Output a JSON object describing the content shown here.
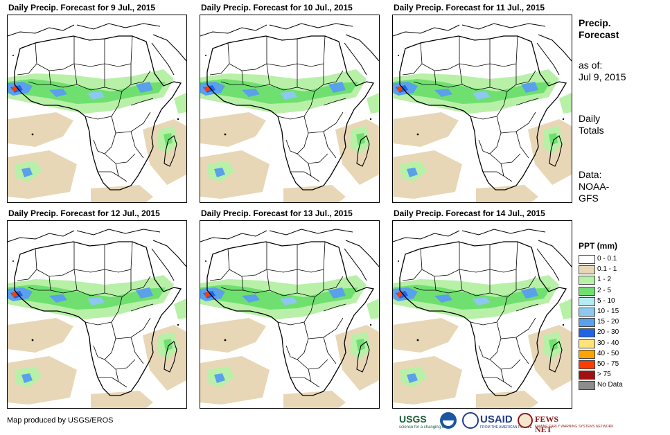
{
  "panels": [
    {
      "title": "Daily Precip. Forecast for 9 Jul., 2015"
    },
    {
      "title": "Daily Precip. Forecast for 10 Jul., 2015"
    },
    {
      "title": "Daily Precip. Forecast for 11 Jul., 2015"
    },
    {
      "title": "Daily Precip. Forecast for 12 Jul., 2015"
    },
    {
      "title": "Daily Precip. Forecast for 13 Jul., 2015"
    },
    {
      "title": "Daily Precip. Forecast for 14 Jul., 2015"
    }
  ],
  "sidebar": {
    "heading_line1": "Precip.",
    "heading_line2": "Forecast",
    "asof_label": "as of:",
    "asof_date": "Jul 9, 2015",
    "totals_line1": "Daily",
    "totals_line2": "Totals",
    "data_line1": "Data:",
    "data_line2": "NOAA-",
    "data_line3": "GFS"
  },
  "legend": {
    "title": "PPT (mm)",
    "items": [
      {
        "label": "0 - 0.1",
        "color": "#ffffff"
      },
      {
        "label": "0.1 - 1",
        "color": "#e8d7b6"
      },
      {
        "label": "1 - 2",
        "color": "#b8f0a8"
      },
      {
        "label": "2 - 5",
        "color": "#6fe06f"
      },
      {
        "label": "5 - 10",
        "color": "#b4ecf4"
      },
      {
        "label": "10 - 15",
        "color": "#8cc8f0"
      },
      {
        "label": "15 - 20",
        "color": "#5aa0ea"
      },
      {
        "label": "20 - 30",
        "color": "#1e64e6"
      },
      {
        "label": "30 - 40",
        "color": "#ffe27a"
      },
      {
        "label": "40 - 50",
        "color": "#ffa500"
      },
      {
        "label": "50 - 75",
        "color": "#ff3c00"
      },
      {
        "label": "> 75",
        "color": "#a01010"
      },
      {
        "label": "No Data",
        "color": "#8c8c8c"
      }
    ]
  },
  "credit": "Map produced by USGS/EROS",
  "logos": {
    "usgs": "USGS",
    "usgs_tag": "science for a changing world",
    "usaid": "USAID",
    "usaid_tag": "FROM THE AMERICAN PEOPLE",
    "fews": "FEWS NET",
    "fews_tag": "FAMINE EARLY WARNING SYSTEMS NETWORK"
  }
}
